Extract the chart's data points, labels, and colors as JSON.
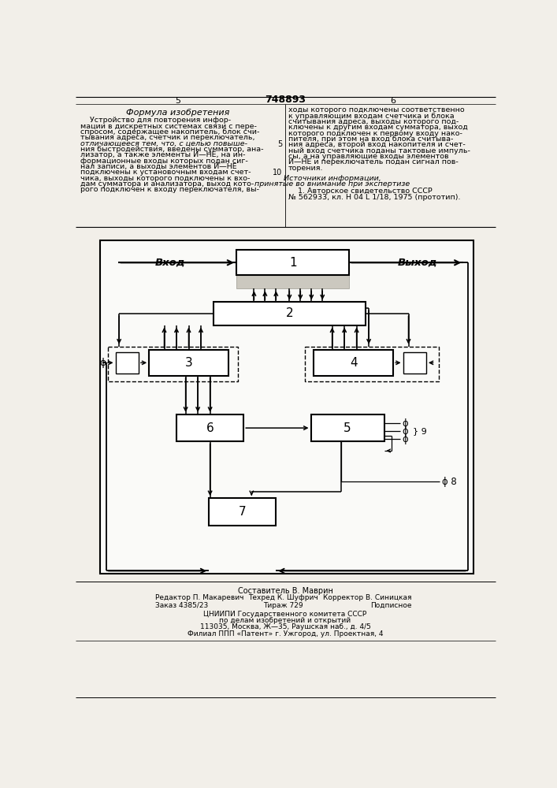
{
  "title": "748893",
  "page_left": "5",
  "page_right": "6",
  "formula_title": "Формула изобретения",
  "text_left_lines": [
    "    Устройство для повторения инфор-",
    "мации в дискретных системах связи с пере-",
    "спросом, содержащее накопитель, блок счи-",
    "тывания адреса, счетчик и переключатель,",
    "отличающееся тем, что, с целью повыше-",
    "ния быстродействия, введены сумматор, ана-",
    "лизатор, а также элементы И—НЕ, на ин-",
    "формационные входы которых подан сиг-",
    "нал записи, а выходы элементов И—НЕ",
    "подключены к установочным входам счет-",
    "чика, выходы которого подключены к вхо-",
    "дам сумматора и анализатора, выход кото-",
    "рого подключен к входу переключателя, вы-"
  ],
  "text_right_lines": [
    "ходы которого подключены соответственно",
    "к управляющим входам счетчика и блока",
    "считывания адреса, выходы которого под-",
    "ключены к другим входам сумматора, выход",
    "которого подключен к первому входу нако-",
    "пителя, при этом на вход блока считыва-",
    "ния адреса, второй вход накопителя и счет-",
    "ный вход счетчика поданы тактовые импуль-",
    "сы, а на управляющие входы элементов",
    "И—НЕ и переключатель подан сигнал пов-",
    "торения."
  ],
  "sources_title": "Источники информации,",
  "sources_subtitle": "принятые во внимание при экспертизе",
  "source1_lines": [
    "    1. Авторское свидетельство СССР",
    "№ 562933, кл. Н 04 L 1/18, 1975 (прототип)."
  ],
  "line_number_5": "5",
  "line_number_10": "10",
  "label_vhod": "Вход",
  "label_vyhod": "Выход",
  "footer_line1": "Составитель В. Маврин",
  "footer_line2_left": "Редактор П. Макаревич",
  "footer_line2_mid": "Техред К. Шуфрич",
  "footer_line2_right": "Корректор В. Синицкая",
  "footer_line3_left": "Заказ 4385/23",
  "footer_line3_mid": "Тираж 729",
  "footer_line3_right": "Подписное",
  "footer_org": "ЦНИИПИ Государственного комитета СССР",
  "footer_org2": "по делам изобретений и открытий",
  "footer_addr": "113035, Москва, Ж—35, Раушская наб., д. 4/5",
  "footer_branch": "Филиал ППП «Патент» г. Ужгород, ул. Проектная, 4",
  "bg_color": "#f2efe9",
  "diagram_bg": "#fafaf8",
  "box_color": "#000000",
  "text_color": "#000000"
}
